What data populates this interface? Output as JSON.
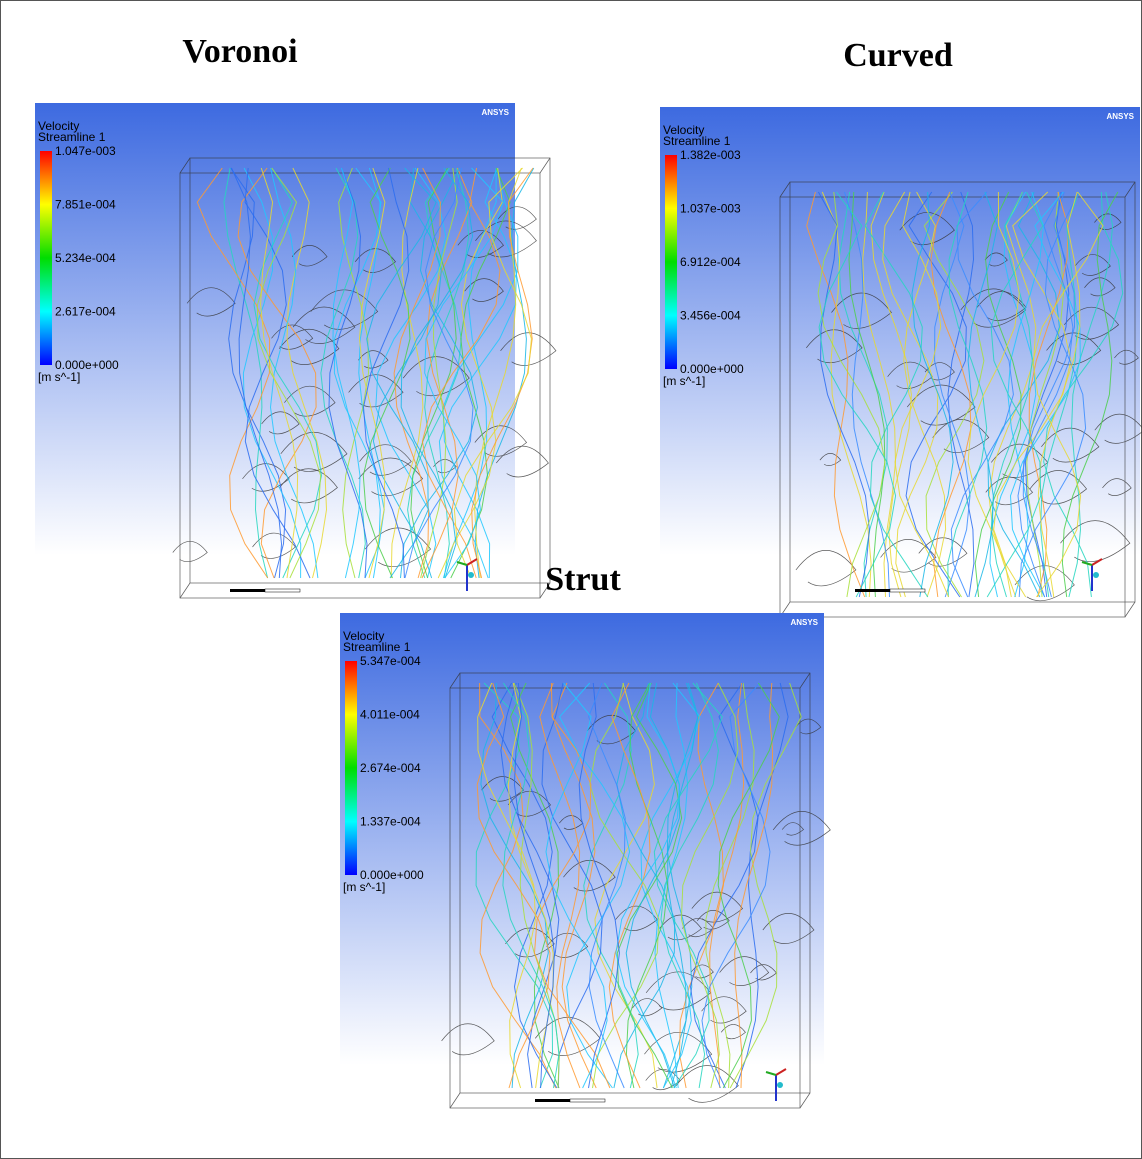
{
  "panels": [
    {
      "title": "Voronoi",
      "logo": "ANSYS",
      "legend": {
        "title": "Velocity",
        "subtitle": "Streamline 1",
        "ticks": [
          "1.047e-003",
          "7.851e-004",
          "5.234e-004",
          "2.617e-004",
          "0.000e+000"
        ],
        "unit": "[m s^-1]"
      }
    },
    {
      "title": "Curved",
      "logo": "ANSYS",
      "legend": {
        "title": "Velocity",
        "subtitle": "Streamline 1",
        "ticks": [
          "1.382e-003",
          "1.037e-003",
          "6.912e-004",
          "3.456e-004",
          "0.000e+000"
        ],
        "unit": "[m s^-1]"
      }
    },
    {
      "title": "Strut",
      "logo": "ANSYS",
      "legend": {
        "title": "Velocity",
        "subtitle": "Streamline 1",
        "ticks": [
          "5.347e-004",
          "4.011e-004",
          "2.674e-004",
          "1.337e-004",
          "0.000e+000"
        ],
        "unit": "[m s^-1]"
      }
    }
  ]
}
